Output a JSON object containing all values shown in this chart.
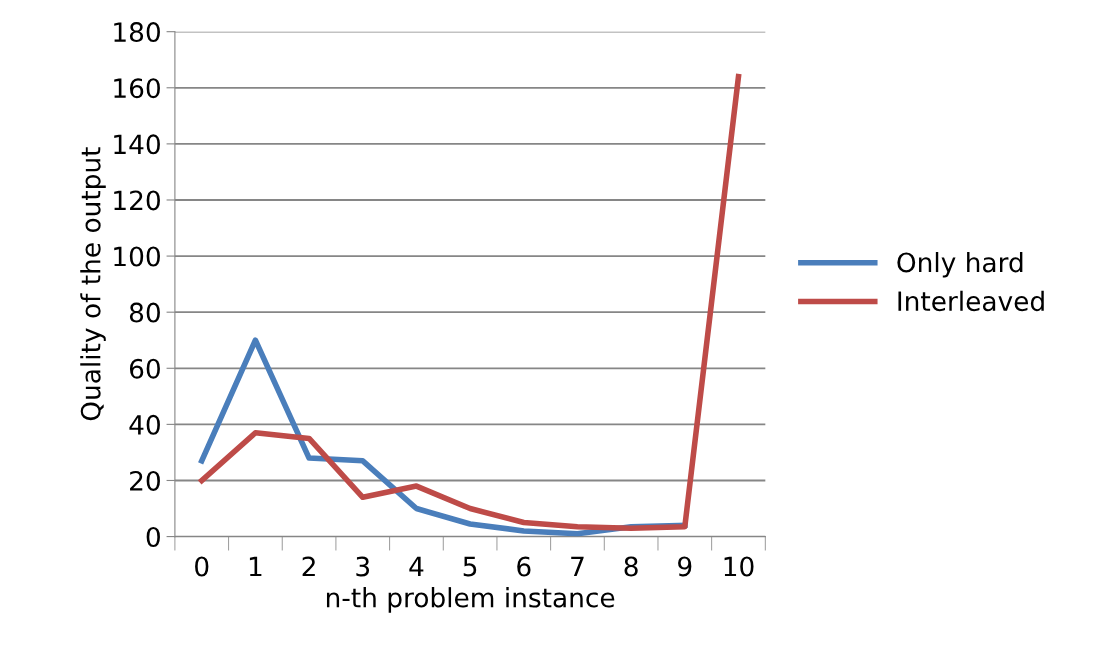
{
  "chart_data": {
    "type": "line",
    "xlabel": "n-th problem instance",
    "ylabel": "Quality of the output",
    "categories": [
      "0",
      "1",
      "2",
      "3",
      "4",
      "5",
      "6",
      "7",
      "8",
      "9",
      "10"
    ],
    "series": [
      {
        "name": "Only hard",
        "color": "#4a7ebb",
        "values": [
          27,
          70,
          28,
          27,
          10,
          4.5,
          2,
          1,
          3.5,
          4,
          null
        ]
      },
      {
        "name": "Interleaved",
        "color": "#be4b48",
        "values": [
          20,
          37,
          35,
          14,
          18,
          10,
          5,
          3.5,
          3,
          3.5,
          164
        ]
      }
    ],
    "ylim": [
      0,
      180
    ],
    "yticks": [
      0,
      20,
      40,
      60,
      80,
      100,
      120,
      140,
      160,
      180
    ],
    "grid": "y",
    "legend": "right",
    "marker": "none",
    "line_style": "solid"
  }
}
